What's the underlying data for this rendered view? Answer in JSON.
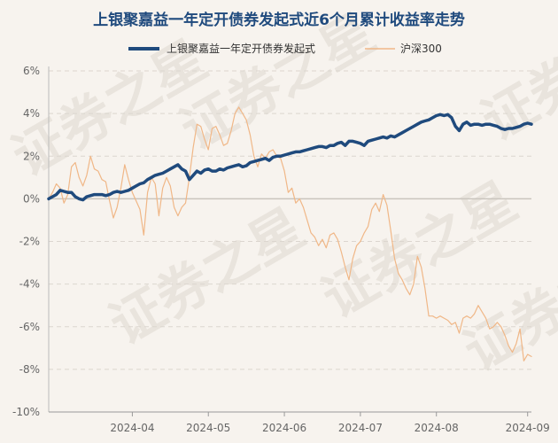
{
  "chart_data": {
    "type": "line",
    "title": "上银聚嘉益一年定开债券发起式近6个月累计收益率走势",
    "xlabel": "",
    "ylabel": "",
    "ylim": [
      -10,
      6
    ],
    "y_ticks": [
      6,
      4,
      2,
      0,
      -2,
      -4,
      -6,
      -8,
      -10
    ],
    "y_tick_labels": [
      "6%",
      "4%",
      "2%",
      "0%",
      "-2%",
      "-4%",
      "-6%",
      "-8%",
      "-10%"
    ],
    "x_tick_labels": [
      "2024-04",
      "2024-05",
      "2024-06",
      "2024-07",
      "2024-08",
      "2024-09"
    ],
    "x_tick_positions": [
      22,
      42,
      62,
      82,
      102,
      126
    ],
    "x_range": [
      0,
      127
    ],
    "grid": true,
    "legend_position": "top-center",
    "watermark": "证券之星",
    "series": [
      {
        "name": "上银聚嘉益一年定开债券发起式",
        "color": "#1f4a7d",
        "values": [
          0.0,
          0.1,
          0.2,
          0.4,
          0.35,
          0.3,
          0.3,
          0.1,
          0.0,
          -0.05,
          0.1,
          0.15,
          0.2,
          0.2,
          0.2,
          0.15,
          0.2,
          0.3,
          0.35,
          0.3,
          0.35,
          0.4,
          0.5,
          0.6,
          0.7,
          0.75,
          0.9,
          1.0,
          1.1,
          1.15,
          1.2,
          1.3,
          1.4,
          1.5,
          1.6,
          1.4,
          1.3,
          0.9,
          1.1,
          1.3,
          1.2,
          1.35,
          1.4,
          1.3,
          1.3,
          1.4,
          1.35,
          1.45,
          1.5,
          1.55,
          1.6,
          1.5,
          1.55,
          1.7,
          1.75,
          1.8,
          1.85,
          1.9,
          1.8,
          1.95,
          2.0,
          2.0,
          2.05,
          2.1,
          2.15,
          2.2,
          2.2,
          2.25,
          2.3,
          2.35,
          2.4,
          2.45,
          2.45,
          2.4,
          2.5,
          2.5,
          2.6,
          2.65,
          2.5,
          2.7,
          2.7,
          2.65,
          2.6,
          2.5,
          2.7,
          2.75,
          2.8,
          2.85,
          2.9,
          2.85,
          2.95,
          2.9,
          3.0,
          3.1,
          3.2,
          3.3,
          3.4,
          3.5,
          3.6,
          3.65,
          3.7,
          3.8,
          3.9,
          3.95,
          3.9,
          3.95,
          3.8,
          3.4,
          3.2,
          3.5,
          3.6,
          3.45,
          3.5,
          3.5,
          3.45,
          3.5,
          3.5,
          3.45,
          3.4,
          3.3,
          3.25,
          3.3,
          3.3,
          3.35,
          3.4,
          3.5,
          3.55,
          3.5
        ]
      },
      {
        "name": "沪深300",
        "color": "#f0b787",
        "values": [
          0.0,
          0.3,
          0.7,
          0.5,
          -0.2,
          0.2,
          1.5,
          1.7,
          1.0,
          0.6,
          1.1,
          2.0,
          1.4,
          1.3,
          0.9,
          0.8,
          -0.1,
          -0.9,
          -0.4,
          0.5,
          1.6,
          0.9,
          0.3,
          -0.1,
          -0.5,
          -1.7,
          0.3,
          1.0,
          0.7,
          -0.8,
          0.5,
          1.0,
          0.6,
          -0.4,
          -0.8,
          -0.4,
          -0.2,
          1.0,
          2.4,
          3.5,
          3.4,
          2.8,
          2.3,
          3.3,
          3.4,
          3.0,
          2.5,
          2.6,
          3.2,
          4.0,
          4.3,
          4.0,
          3.7,
          3.0,
          2.0,
          1.5,
          2.1,
          1.9,
          2.2,
          2.3,
          2.0,
          1.9,
          1.3,
          0.3,
          0.5,
          -0.2,
          0.0,
          -0.4,
          -1.0,
          -1.6,
          -1.8,
          -2.2,
          -1.9,
          -2.3,
          -1.7,
          -1.6,
          -1.9,
          -2.5,
          -3.2,
          -3.8,
          -2.8,
          -2.2,
          -2.0,
          -1.6,
          -1.3,
          -0.5,
          -0.2,
          -0.6,
          0.2,
          -0.3,
          -1.5,
          -2.8,
          -3.5,
          -3.8,
          -4.2,
          -4.5,
          -4.0,
          -2.7,
          -3.2,
          -4.2,
          -5.5,
          -5.5,
          -5.6,
          -5.5,
          -5.6,
          -5.7,
          -5.9,
          -5.8,
          -6.3,
          -5.6,
          -5.5,
          -5.6,
          -5.4,
          -5.0,
          -5.3,
          -5.6,
          -6.1,
          -6.0,
          -5.8,
          -6.0,
          -6.4,
          -6.9,
          -7.2,
          -6.8,
          -6.1,
          -7.6,
          -7.3,
          -7.4
        ]
      }
    ]
  }
}
